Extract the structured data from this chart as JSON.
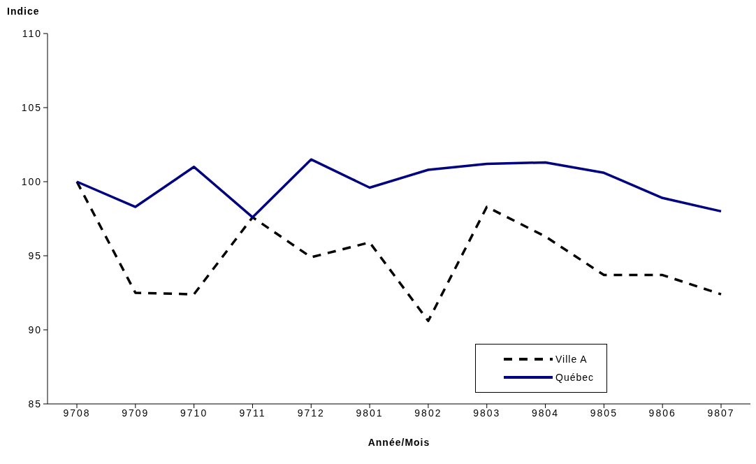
{
  "chart_data": {
    "type": "line",
    "ylabel": "Indice",
    "xlabel": "Année/Mois",
    "categories": [
      "9708",
      "9709",
      "9710",
      "9711",
      "9712",
      "9801",
      "9802",
      "9803",
      "9804",
      "9805",
      "9806",
      "9807"
    ],
    "series": [
      {
        "name": "Ville A",
        "color": "#000000",
        "line_style": "dashed",
        "values": [
          100,
          92.5,
          92.4,
          97.6,
          94.9,
          95.9,
          90.6,
          98.3,
          96.3,
          93.7,
          93.7,
          92.4
        ]
      },
      {
        "name": "Québec",
        "color": "#000080",
        "line_style": "solid",
        "values": [
          100,
          98.3,
          101,
          97.6,
          101.5,
          99.6,
          100.8,
          101.2,
          101.3,
          100.6,
          98.9,
          98
        ]
      }
    ],
    "ylim": [
      85,
      110
    ],
    "yticks": [
      85,
      90,
      95,
      100,
      105,
      110
    ],
    "grid": false,
    "legend": "bottom right",
    "marker": "none"
  }
}
